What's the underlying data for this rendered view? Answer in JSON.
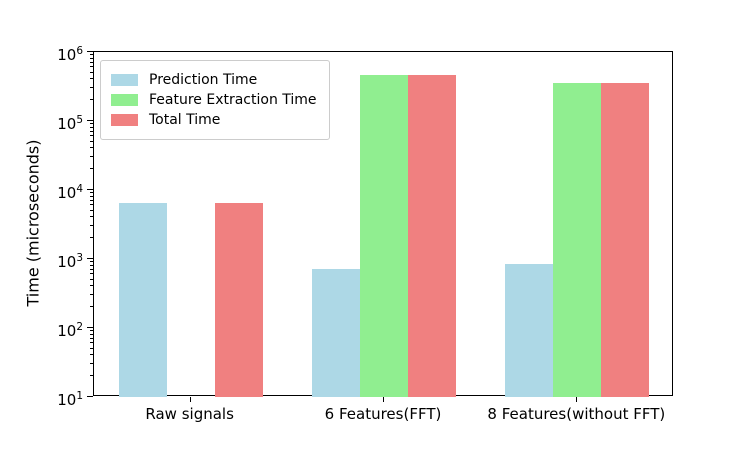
{
  "chart_data": {
    "type": "bar",
    "title": "",
    "xlabel": "",
    "ylabel": "Time (microseconds)",
    "yscale": "log",
    "ylim": [
      10,
      1000000
    ],
    "y_tick_exponents": [
      1,
      2,
      3,
      4,
      5,
      6
    ],
    "grid": false,
    "legend_position": "upper left",
    "categories": [
      "Raw signals",
      "6 Features(FFT)",
      "8 Features(without FFT)"
    ],
    "series": [
      {
        "name": "Prediction Time",
        "color": "#ADD8E6",
        "values": [
          6500,
          720,
          850
        ]
      },
      {
        "name": "Feature Extraction Time",
        "color": "#90EE90",
        "values": [
          null,
          470000,
          350000
        ]
      },
      {
        "name": "Total Time",
        "color": "#F08080",
        "values": [
          6500,
          470000,
          350000
        ]
      }
    ]
  }
}
